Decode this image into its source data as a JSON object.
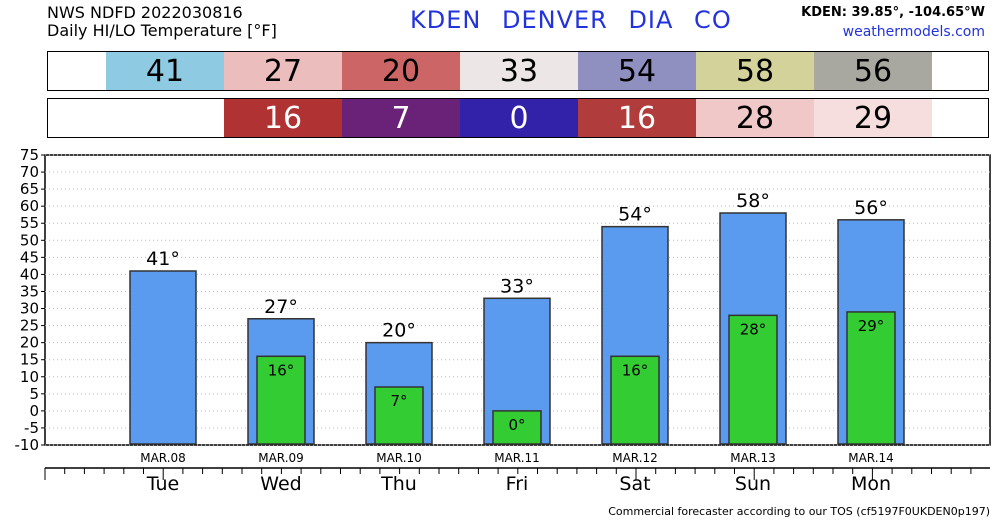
{
  "header": {
    "line1": "NWS NDFD 2022030816",
    "line2": "Daily HI/LO Temperature [°F]",
    "station": "KDEN  DENVER DIA    CO",
    "coords": "KDEN: 39.85°, -104.65°W",
    "site": "weathermodels.com"
  },
  "colors": {
    "high_bar": "#5b9bef",
    "low_bar": "#33cc33",
    "hi_cells": [
      "#8ecbe3",
      "#ecbdbd",
      "#cc6666",
      "#ece6e6",
      "#9090c0",
      "#d2d29a",
      "#a8a8a0"
    ],
    "lo_cells": [
      "",
      "#b03232",
      "#6a2278",
      "#3222aa",
      "#b03c3c",
      "#f0c8c8",
      "#f6dede"
    ]
  },
  "footer": "Commercial forecaster according to our TOS (cf5197F0UKDEN0p197)",
  "chart_data": {
    "type": "bar",
    "categories": [
      "Tue",
      "Wed",
      "Thu",
      "Fri",
      "Sat",
      "Sun",
      "Mon"
    ],
    "dates": [
      "MAR.08",
      "MAR.09",
      "MAR.10",
      "MAR.11",
      "MAR.12",
      "MAR.13",
      "MAR.14"
    ],
    "series": [
      {
        "values": [
          41,
          27,
          20,
          33,
          54,
          58,
          56
        ]
      },
      {
        "values": [
          null,
          16,
          7,
          0,
          16,
          28,
          29
        ]
      }
    ],
    "ylim": [
      -10,
      75
    ],
    "yticks": [
      75,
      70,
      65,
      60,
      55,
      50,
      45,
      40,
      35,
      30,
      25,
      20,
      15,
      10,
      5,
      0,
      -5,
      -10
    ],
    "grid": true,
    "degree_symbol": "°"
  }
}
